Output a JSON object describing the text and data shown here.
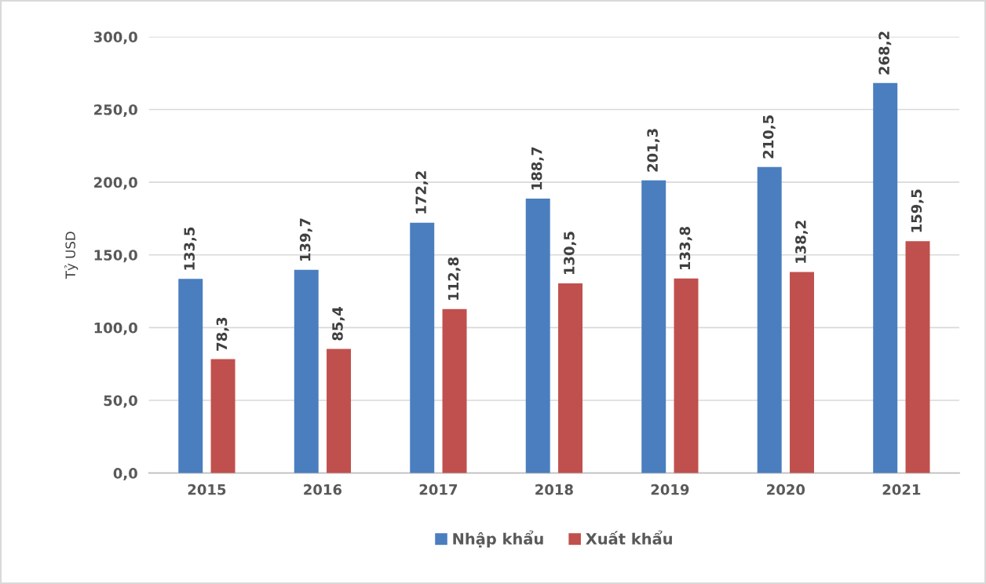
{
  "chart_data": {
    "type": "bar",
    "ylabel": "Tỷ USD",
    "categories": [
      "2015",
      "2016",
      "2017",
      "2018",
      "2019",
      "2020",
      "2021"
    ],
    "series": [
      {
        "name": "Nhập khẩu",
        "color": "#4a7ebf",
        "values": [
          133.5,
          139.7,
          172.2,
          188.7,
          201.3,
          210.5,
          268.2
        ],
        "value_labels": [
          "133,5",
          "139,7",
          "172,2",
          "188,7",
          "201,3",
          "210,5",
          "268,2"
        ]
      },
      {
        "name": "Xuất khẩu",
        "color": "#c0504d",
        "values": [
          78.3,
          85.4,
          112.8,
          130.5,
          133.8,
          138.2,
          159.5
        ],
        "value_labels": [
          "78,3",
          "85,4",
          "112,8",
          "130,5",
          "133,8",
          "138,2",
          "159,5"
        ]
      }
    ],
    "ylim": [
      0,
      300
    ],
    "yticks": [
      {
        "value": 0,
        "label": "0,0"
      },
      {
        "value": 50,
        "label": "50,0"
      },
      {
        "value": 100,
        "label": "100,0"
      },
      {
        "value": 150,
        "label": "150,0"
      },
      {
        "value": 200,
        "label": "200,0"
      },
      {
        "value": 250,
        "label": "250,0"
      },
      {
        "value": 300,
        "label": "300,0"
      }
    ],
    "grid": "y",
    "legend": "bottom"
  }
}
